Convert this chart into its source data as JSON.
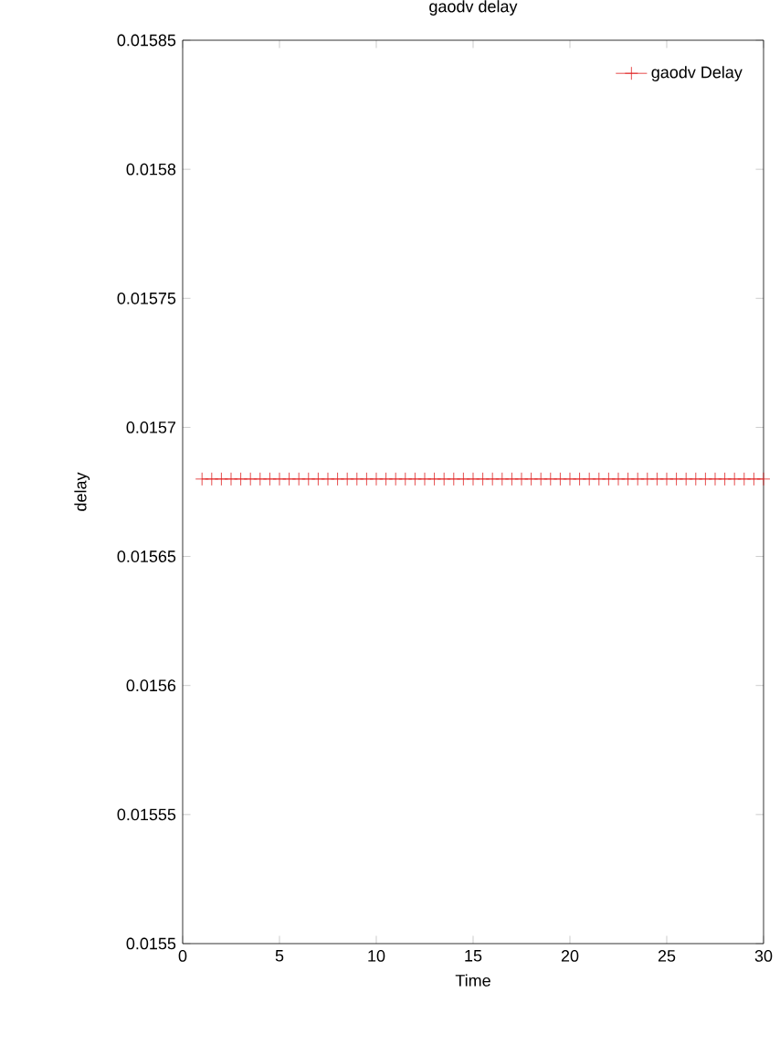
{
  "chart_data": {
    "type": "line",
    "title": "gaodv delay",
    "xlabel": "Time",
    "ylabel": "delay",
    "x": [
      1,
      1.5,
      2,
      2.5,
      3,
      3.5,
      4,
      4.5,
      5,
      5.5,
      6,
      6.5,
      7,
      7.5,
      8,
      8.5,
      9,
      9.5,
      10,
      10.5,
      11,
      11.5,
      12,
      12.5,
      13,
      13.5,
      14,
      14.5,
      15,
      15.5,
      16,
      16.5,
      17,
      17.5,
      18,
      18.5,
      19,
      19.5,
      20,
      20.5,
      21,
      21.5,
      22,
      22.5,
      23,
      23.5,
      24,
      24.5,
      25,
      25.5,
      26,
      26.5,
      27,
      27.5,
      28,
      28.5,
      29,
      29.5,
      30
    ],
    "series": [
      {
        "name": "gaodv Delay",
        "color": "#e02020",
        "values": [
          0.01568,
          0.01568,
          0.01568,
          0.01568,
          0.01568,
          0.01568,
          0.01568,
          0.01568,
          0.01568,
          0.01568,
          0.01568,
          0.01568,
          0.01568,
          0.01568,
          0.01568,
          0.01568,
          0.01568,
          0.01568,
          0.01568,
          0.01568,
          0.01568,
          0.01568,
          0.01568,
          0.01568,
          0.01568,
          0.01568,
          0.01568,
          0.01568,
          0.01568,
          0.01568,
          0.01568,
          0.01568,
          0.01568,
          0.01568,
          0.01568,
          0.01568,
          0.01568,
          0.01568,
          0.01568,
          0.01568,
          0.01568,
          0.01568,
          0.01568,
          0.01568,
          0.01568,
          0.01568,
          0.01568,
          0.01568,
          0.01568,
          0.01568,
          0.01568,
          0.01568,
          0.01568,
          0.01568,
          0.01568,
          0.01568,
          0.01568,
          0.01568,
          0.01568
        ]
      }
    ],
    "xlim": [
      0,
      30
    ],
    "ylim": [
      0.0155,
      0.01585
    ],
    "xticks": [
      {
        "value": 0,
        "label": "0"
      },
      {
        "value": 5,
        "label": "5"
      },
      {
        "value": 10,
        "label": "10"
      },
      {
        "value": 15,
        "label": "15"
      },
      {
        "value": 20,
        "label": "20"
      },
      {
        "value": 25,
        "label": "25"
      },
      {
        "value": 30,
        "label": "30"
      }
    ],
    "yticks": [
      {
        "value": 0.0155,
        "label": "0.0155"
      },
      {
        "value": 0.01555,
        "label": "0.01555"
      },
      {
        "value": 0.0156,
        "label": "0.0156"
      },
      {
        "value": 0.01565,
        "label": "0.01565"
      },
      {
        "value": 0.0157,
        "label": "0.0157"
      },
      {
        "value": 0.01575,
        "label": "0.01575"
      },
      {
        "value": 0.0158,
        "label": "0.0158"
      },
      {
        "value": 0.01585,
        "label": "0.01585"
      }
    ],
    "grid": false,
    "legend": "top right",
    "marker": "cross",
    "line_style": "solid"
  }
}
